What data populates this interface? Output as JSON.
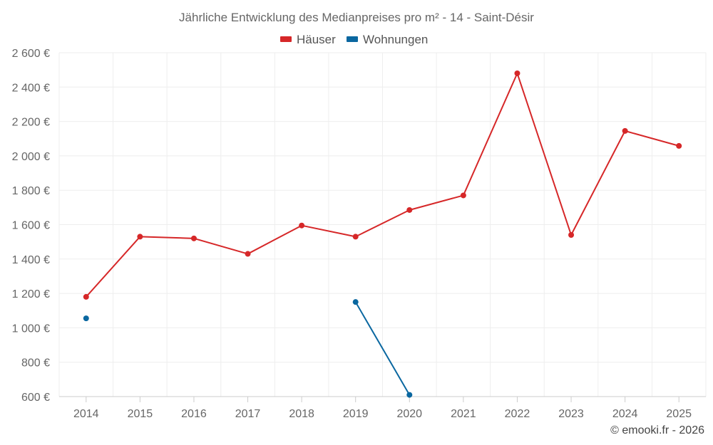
{
  "chart_data": {
    "type": "line",
    "title": "Jährliche Entwicklung des Medianpreises pro m² - 14 - Saint-Désir",
    "categories": [
      "2014",
      "2015",
      "2016",
      "2017",
      "2018",
      "2019",
      "2020",
      "2021",
      "2022",
      "2023",
      "2024",
      "2025"
    ],
    "series": [
      {
        "name": "Häuser",
        "color": "#d62728",
        "values": [
          1180,
          1530,
          1520,
          1430,
          1595,
          1530,
          1685,
          1770,
          2480,
          1540,
          2145,
          2058
        ]
      },
      {
        "name": "Wohnungen",
        "color": "#0a67a0",
        "values": [
          1055,
          null,
          null,
          null,
          null,
          1150,
          610,
          null,
          null,
          null,
          null,
          null
        ]
      }
    ],
    "ylim": [
      600,
      2600
    ],
    "yticks": [
      600,
      800,
      1000,
      1200,
      1400,
      1600,
      1800,
      2000,
      2200,
      2400,
      2600
    ],
    "ytick_labels": [
      "600 €",
      "800 €",
      "1 000 €",
      "1 200 €",
      "1 400 €",
      "1 600 €",
      "1 800 €",
      "2 000 €",
      "2 200 €",
      "2 400 €",
      "2 600 €"
    ],
    "xlabel": "",
    "ylabel": "",
    "legend_position": "top-center",
    "grid": true
  },
  "credit": "© emooki.fr - 2026"
}
